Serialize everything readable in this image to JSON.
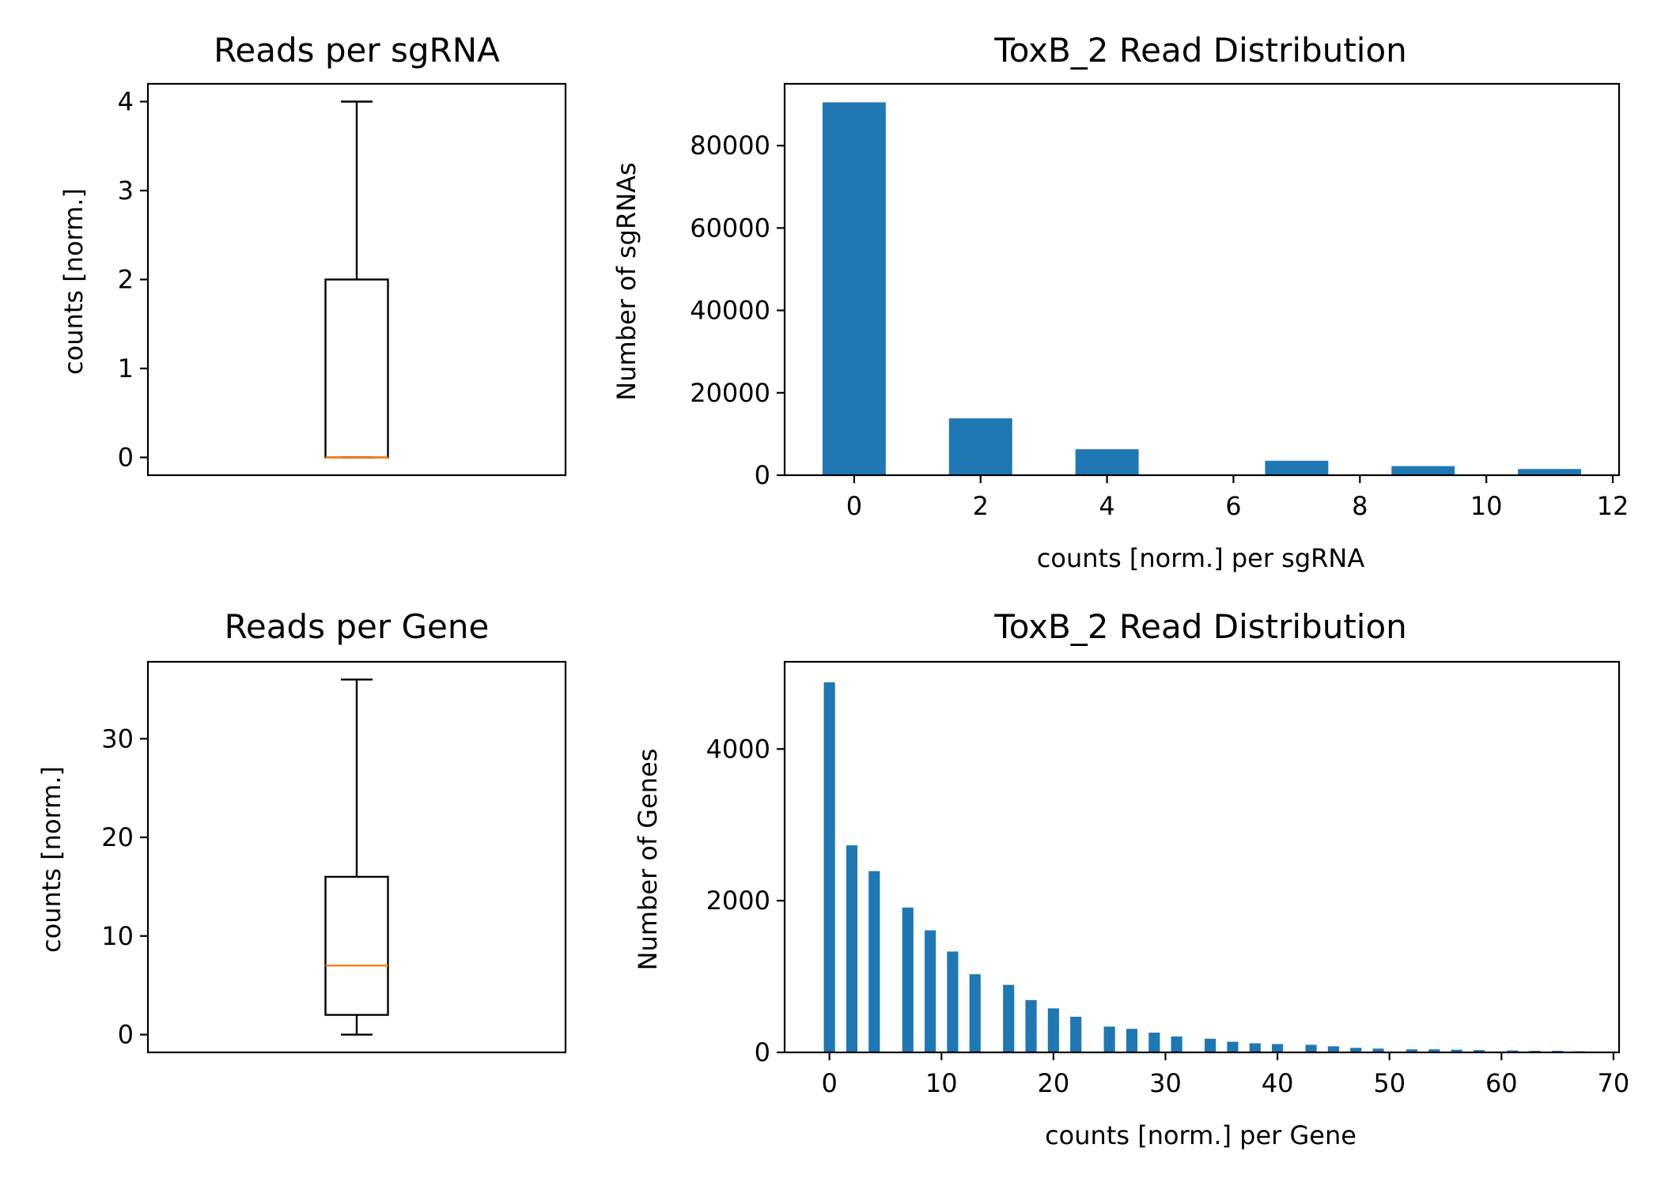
{
  "colors": {
    "bar": "#1f77b4",
    "median": "#ff7f0e",
    "axis": "#000000"
  },
  "chart_data": [
    {
      "id": "box1",
      "type": "box",
      "title": "Reads per sgRNA",
      "ylabel": "counts [norm.]",
      "ylim": [
        -0.2,
        4.2
      ],
      "yticks": [
        0,
        1,
        2,
        3,
        4
      ],
      "yticklabels": [
        "0",
        "1",
        "2",
        "3",
        "4"
      ],
      "stats": {
        "whisker_low": 0,
        "q1": 0,
        "median": 0,
        "q3": 2,
        "whisker_high": 4
      }
    },
    {
      "id": "hist1",
      "type": "bar",
      "title": "ToxB_2 Read Distribution",
      "xlabel": "counts [norm.] per sgRNA",
      "ylabel": "Number of sgRNAs",
      "xlim": [
        -1.1,
        12.1
      ],
      "ylim": [
        0,
        95000
      ],
      "bar_width": 1.0,
      "xticks": [
        0,
        2,
        4,
        6,
        8,
        10,
        12
      ],
      "xticklabels": [
        "0",
        "2",
        "4",
        "6",
        "8",
        "10",
        "12"
      ],
      "yticks": [
        0,
        20000,
        40000,
        60000,
        80000
      ],
      "yticklabels": [
        "0",
        "20000",
        "40000",
        "60000",
        "80000"
      ],
      "x": [
        0,
        2,
        4,
        7,
        9,
        11
      ],
      "values": [
        90500,
        13800,
        6300,
        3500,
        2200,
        1500
      ]
    },
    {
      "id": "box2",
      "type": "box",
      "title": "Reads per Gene",
      "ylabel": "counts [norm.]",
      "ylim": [
        -1.8,
        37.8
      ],
      "yticks": [
        0,
        10,
        20,
        30
      ],
      "yticklabels": [
        "0",
        "10",
        "20",
        "30"
      ],
      "stats": {
        "whisker_low": 0,
        "q1": 2,
        "median": 7,
        "q3": 16,
        "whisker_high": 36
      }
    },
    {
      "id": "hist2",
      "type": "bar",
      "title": "ToxB_2 Read Distribution",
      "xlabel": "counts [norm.] per Gene",
      "ylabel": "Number of Genes",
      "xlim": [
        -4,
        70.5
      ],
      "ylim": [
        0,
        5150
      ],
      "bar_width": 1.0,
      "xticks": [
        0,
        10,
        20,
        30,
        40,
        50,
        60,
        70
      ],
      "xticklabels": [
        "0",
        "10",
        "20",
        "30",
        "40",
        "50",
        "60",
        "70"
      ],
      "yticks": [
        0,
        2000,
        4000
      ],
      "yticklabels": [
        "0",
        "2000",
        "4000"
      ],
      "x": [
        0,
        2,
        4,
        7,
        9,
        11,
        13,
        16,
        18,
        20,
        22,
        25,
        27,
        29,
        31,
        34,
        36,
        38,
        40,
        43,
        45,
        47,
        49,
        52,
        54,
        56,
        58,
        61,
        63,
        65,
        67
      ],
      "values": [
        4880,
        2730,
        2390,
        1910,
        1610,
        1330,
        1030,
        890,
        690,
        580,
        470,
        340,
        310,
        260,
        210,
        180,
        140,
        120,
        110,
        100,
        80,
        60,
        50,
        40,
        40,
        35,
        30,
        25,
        20,
        20,
        15
      ]
    }
  ]
}
